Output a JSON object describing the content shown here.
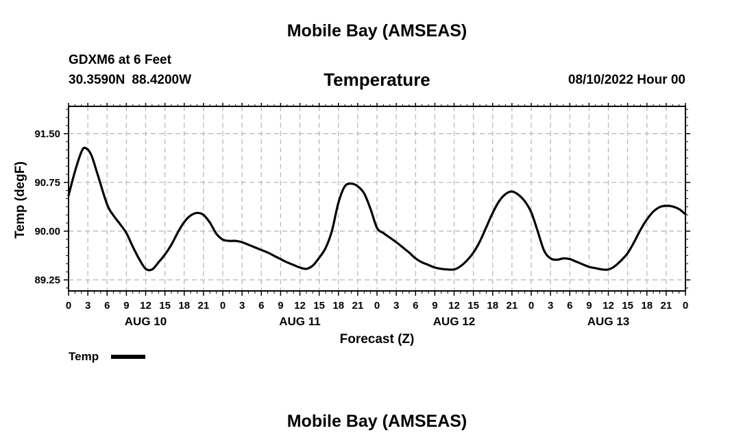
{
  "header": {
    "main_title": "Mobile Bay (AMSEAS)",
    "station": "GDXM6 at 6 Feet",
    "lat": "30.3590N",
    "lon": "88.4200W",
    "chart_title": "Temperature",
    "run_time": "08/10/2022 Hour 00"
  },
  "footer": {
    "main_title": "Mobile Bay (AMSEAS)"
  },
  "chart_data": {
    "type": "line",
    "title": "Temperature",
    "xlabel": "Forecast (Z)",
    "ylabel": "Temp (degF)",
    "x_unit": "forecast hour",
    "xlim": [
      0,
      96
    ],
    "ylim": [
      89.08,
      91.92
    ],
    "yticks": [
      89.25,
      90.0,
      90.75,
      91.5
    ],
    "ytick_labels": [
      "89.25",
      "90.00",
      "90.75",
      "91.50"
    ],
    "xticks": [
      0,
      3,
      6,
      9,
      12,
      15,
      18,
      21,
      24,
      27,
      30,
      33,
      36,
      39,
      42,
      45,
      48,
      51,
      54,
      57,
      60,
      63,
      66,
      69,
      72,
      75,
      78,
      81,
      84,
      87,
      90,
      93,
      96
    ],
    "xtick_labels": [
      "0",
      "3",
      "6",
      "9",
      "12",
      "15",
      "18",
      "21",
      "0",
      "3",
      "6",
      "9",
      "12",
      "15",
      "18",
      "21",
      "0",
      "3",
      "6",
      "9",
      "12",
      "15",
      "18",
      "21",
      "0",
      "3",
      "6",
      "9",
      "12",
      "15",
      "18",
      "21",
      "0"
    ],
    "day_labels": [
      {
        "label": "AUG 10",
        "x": 12
      },
      {
        "label": "AUG 11",
        "x": 36
      },
      {
        "label": "AUG 12",
        "x": 60
      },
      {
        "label": "AUG 13",
        "x": 84
      }
    ],
    "grid": true,
    "legend": {
      "position": "bottom-left",
      "entries": [
        "Temp"
      ]
    },
    "series": [
      {
        "name": "Temp",
        "color": "#000000",
        "x": [
          0,
          1,
          2,
          2.6,
          3.5,
          4.5,
          6,
          7,
          8,
          9,
          10,
          11,
          12,
          13,
          14,
          15,
          16,
          17,
          18,
          19,
          20,
          21,
          22,
          23,
          24,
          25,
          26,
          27,
          28,
          29,
          30,
          31,
          32,
          33,
          34,
          35,
          36,
          37,
          38,
          39,
          40,
          41,
          42,
          43,
          44,
          45,
          46,
          47,
          48,
          49,
          50,
          51,
          52,
          53,
          54,
          55,
          56,
          57,
          58,
          59,
          60,
          61,
          62,
          63,
          64,
          65,
          66,
          67,
          68,
          69,
          70,
          71,
          72,
          73,
          74,
          75,
          76,
          77,
          78,
          79,
          80,
          81,
          82,
          83,
          84,
          85,
          86,
          87,
          88,
          89,
          90,
          91,
          92,
          93,
          94,
          95,
          96
        ],
        "y": [
          90.55,
          90.92,
          91.22,
          91.28,
          91.18,
          90.88,
          90.41,
          90.24,
          90.11,
          89.97,
          89.76,
          89.57,
          89.42,
          89.41,
          89.52,
          89.64,
          89.79,
          89.98,
          90.14,
          90.24,
          90.28,
          90.25,
          90.13,
          89.96,
          89.87,
          89.85,
          89.85,
          89.83,
          89.79,
          89.75,
          89.71,
          89.67,
          89.62,
          89.57,
          89.52,
          89.48,
          89.44,
          89.42,
          89.47,
          89.59,
          89.74,
          90.01,
          90.44,
          90.69,
          90.73,
          90.69,
          90.58,
          90.34,
          90.05,
          89.97,
          89.9,
          89.83,
          89.75,
          89.67,
          89.58,
          89.52,
          89.48,
          89.44,
          89.42,
          89.41,
          89.41,
          89.46,
          89.55,
          89.67,
          89.84,
          90.06,
          90.28,
          90.46,
          90.57,
          90.61,
          90.56,
          90.46,
          90.29,
          90.0,
          89.7,
          89.58,
          89.56,
          89.58,
          89.57,
          89.53,
          89.49,
          89.45,
          89.43,
          89.41,
          89.41,
          89.46,
          89.55,
          89.66,
          89.83,
          90.02,
          90.18,
          90.3,
          90.37,
          90.39,
          90.38,
          90.34,
          90.26
        ]
      }
    ]
  }
}
